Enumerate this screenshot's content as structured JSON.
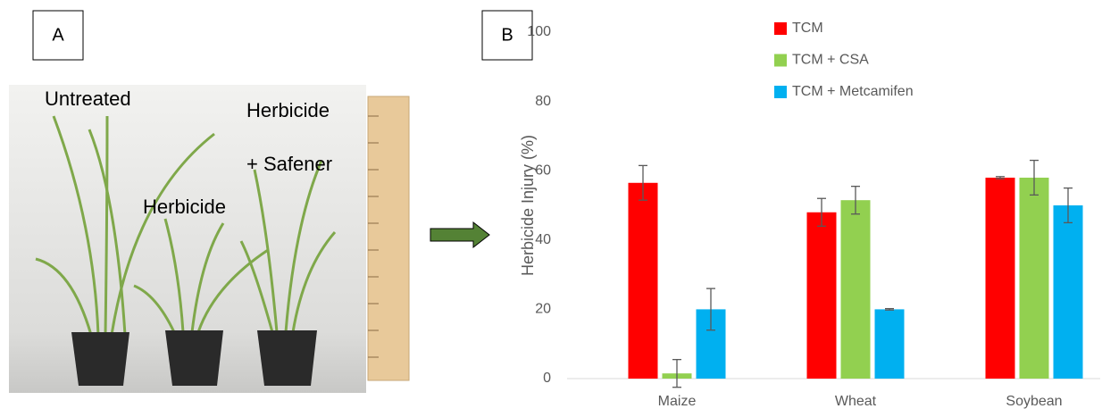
{
  "panel_a": {
    "label": "A",
    "texts": [
      "Untreated",
      "Herbicide",
      "Herbicide",
      "+ Safener"
    ]
  },
  "panel_b": {
    "label": "B"
  },
  "chart_data": {
    "type": "bar",
    "y_label": "Herbicide Injury (%)",
    "categories": [
      "Maize",
      "Wheat",
      "Soybean"
    ],
    "series": [
      {
        "name": "TCM",
        "color": "#ff0000",
        "values": [
          56.5,
          48,
          58
        ],
        "errors": [
          5,
          4,
          0.3
        ]
      },
      {
        "name": "TCM + CSA",
        "color": "#92d050",
        "values": [
          1.5,
          51.5,
          58
        ],
        "errors": [
          4,
          4,
          5
        ]
      },
      {
        "name": "TCM + Metcamifen",
        "color": "#00b0f0",
        "values": [
          20,
          20,
          50
        ],
        "errors": [
          6,
          0.2,
          5
        ]
      }
    ],
    "ylim": [
      0,
      100
    ],
    "yticks": [
      0,
      20,
      40,
      60,
      80,
      100
    ],
    "grid": false
  }
}
